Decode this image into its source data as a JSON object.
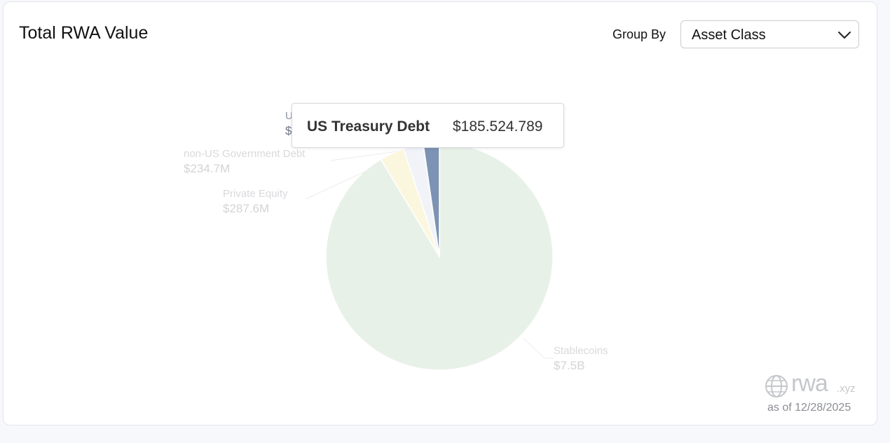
{
  "header": {
    "title": "Total RWA Value",
    "group_by_label": "Group By",
    "group_by_value": "Asset Class"
  },
  "tooltip": {
    "name": "US Treasury Debt",
    "value": "$185.524.789"
  },
  "footer": {
    "brand": "rwa",
    "brand_suffix": ".xyz",
    "as_of": "as of 12/28/2025"
  },
  "chart_data": {
    "type": "pie",
    "title": "Total RWA Value",
    "slices": [
      {
        "name": "Stablecoins",
        "label": "$7.5B",
        "value": 7500000000,
        "color": "#e8f1e8"
      },
      {
        "name": "Private Equity",
        "label": "$287.6M",
        "value": 287600000,
        "color": "#fbf7df"
      },
      {
        "name": "non-US Government Debt",
        "label": "$234.7M",
        "value": 234700000,
        "color": "#f1f3f8"
      },
      {
        "name": "US Treasury Debt",
        "label": "$185.5M",
        "value": 185524789,
        "color": "#7c93b3",
        "highlighted": true
      }
    ]
  }
}
